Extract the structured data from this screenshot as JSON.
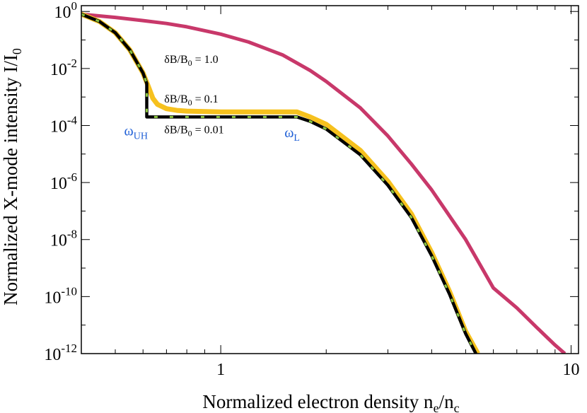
{
  "chart_data": {
    "type": "line",
    "xlabel": "Normalized electron density n",
    "xlabel_sub1": "e",
    "xlabel_mid": "/n",
    "xlabel_sub2": "c",
    "ylabel": "Normalized X-mode intensity I/I",
    "ylabel_sub": "0",
    "xscale": "log",
    "yscale": "log",
    "xlim": [
      0.4,
      10.5
    ],
    "ylim": [
      1e-12,
      1.6
    ],
    "x_ticks": [
      {
        "value": 1,
        "label": "1"
      },
      {
        "value": 10,
        "label": "10"
      }
    ],
    "y_ticks": [
      {
        "value": 1,
        "base": "10",
        "exp": "0"
      },
      {
        "value": 0.01,
        "base": "10",
        "exp": "-2"
      },
      {
        "value": 0.0001,
        "base": "10",
        "exp": "-4"
      },
      {
        "value": 1e-06,
        "base": "10",
        "exp": "-6"
      },
      {
        "value": 1e-08,
        "base": "10",
        "exp": "-8"
      },
      {
        "value": 1e-10,
        "base": "10",
        "exp": "-10"
      },
      {
        "value": 1e-12,
        "base": "10",
        "exp": "-12"
      }
    ],
    "series": [
      {
        "color": "#c8386a",
        "style": "solid",
        "x": [
          0.4,
          0.5,
          0.6,
          0.7,
          0.8,
          1.0,
          1.2,
          1.5,
          1.8,
          2.0,
          2.5,
          3.0,
          3.5,
          4.0,
          5.0,
          6.0,
          7.0,
          8.0,
          9.0,
          9.6
        ],
        "y": [
          0.8,
          0.62,
          0.48,
          0.38,
          0.29,
          0.16,
          0.085,
          0.03,
          0.0085,
          0.0035,
          0.00042,
          4.3e-05,
          4.5e-06,
          5.5e-07,
          1e-08,
          2e-10,
          4e-11,
          8e-12,
          2e-12,
          1e-12
        ]
      },
      {
        "color": "#f6c11e",
        "style": "solid",
        "x": [
          0.4,
          0.45,
          0.5,
          0.55,
          0.6,
          0.62,
          0.64,
          0.66,
          0.7,
          0.75,
          0.8,
          1.0,
          1.3,
          1.65,
          1.8,
          2.0,
          2.5,
          3.0,
          3.5,
          4.0,
          4.5,
          5.0,
          5.42
        ],
        "y": [
          0.8,
          0.45,
          0.18,
          0.045,
          0.007,
          0.0025,
          0.0009,
          0.00055,
          0.00039,
          0.00034,
          0.00032,
          0.0003,
          0.0003,
          0.0003,
          0.0002,
          0.00011,
          1.35e-05,
          1.1e-06,
          8e-08,
          3.5e-09,
          1.5e-10,
          6e-12,
          1e-12
        ]
      },
      {
        "color": "#000000",
        "style": "solid",
        "x": [
          0.4,
          0.45,
          0.5,
          0.55,
          0.6,
          0.615,
          0.615,
          1.0,
          1.65,
          1.8,
          2.0,
          2.5,
          3.0,
          3.5,
          4.0,
          4.5,
          5.0,
          5.35
        ],
        "y": [
          0.8,
          0.45,
          0.18,
          0.045,
          0.007,
          0.003,
          0.0002,
          0.0002,
          0.0002,
          0.00014,
          7.5e-05,
          9.5e-06,
          8e-07,
          6e-08,
          2.7e-09,
          1.2e-10,
          5e-12,
          1e-12
        ]
      },
      {
        "color": "#8cc63f",
        "style": "dashed",
        "x": [
          0.4,
          0.45,
          0.5,
          0.55,
          0.6,
          0.615,
          0.615,
          1.0,
          1.65,
          1.8,
          2.0,
          2.5,
          3.0,
          3.5,
          4.0,
          4.5,
          5.0,
          5.35
        ],
        "y": [
          0.8,
          0.45,
          0.18,
          0.045,
          0.007,
          0.003,
          0.0002,
          0.0002,
          0.0002,
          0.00014,
          7.5e-05,
          9.5e-06,
          8e-07,
          6e-08,
          2.7e-09,
          1.2e-10,
          5e-12,
          1e-12
        ]
      }
    ],
    "annotations": [
      {
        "pre": "δB/B",
        "sub": "0",
        "post": " = 1.0",
        "x": 0.69,
        "y": 0.022
      },
      {
        "pre": "δB/B",
        "sub": "0",
        "post": " = 0.1",
        "x": 0.69,
        "y": 0.0009
      },
      {
        "pre": "δB/B",
        "sub": "0",
        "post": " = 0.01",
        "x": 0.69,
        "y": 7.5e-05
      }
    ],
    "markers": [
      {
        "base": "ω",
        "sub": "UH",
        "x": 0.53,
        "y": 7.5e-05,
        "color": "#1f5fd6"
      },
      {
        "base": "ω",
        "sub": "L",
        "x": 1.52,
        "y": 6.5e-05,
        "color": "#1f5fd6"
      }
    ]
  }
}
